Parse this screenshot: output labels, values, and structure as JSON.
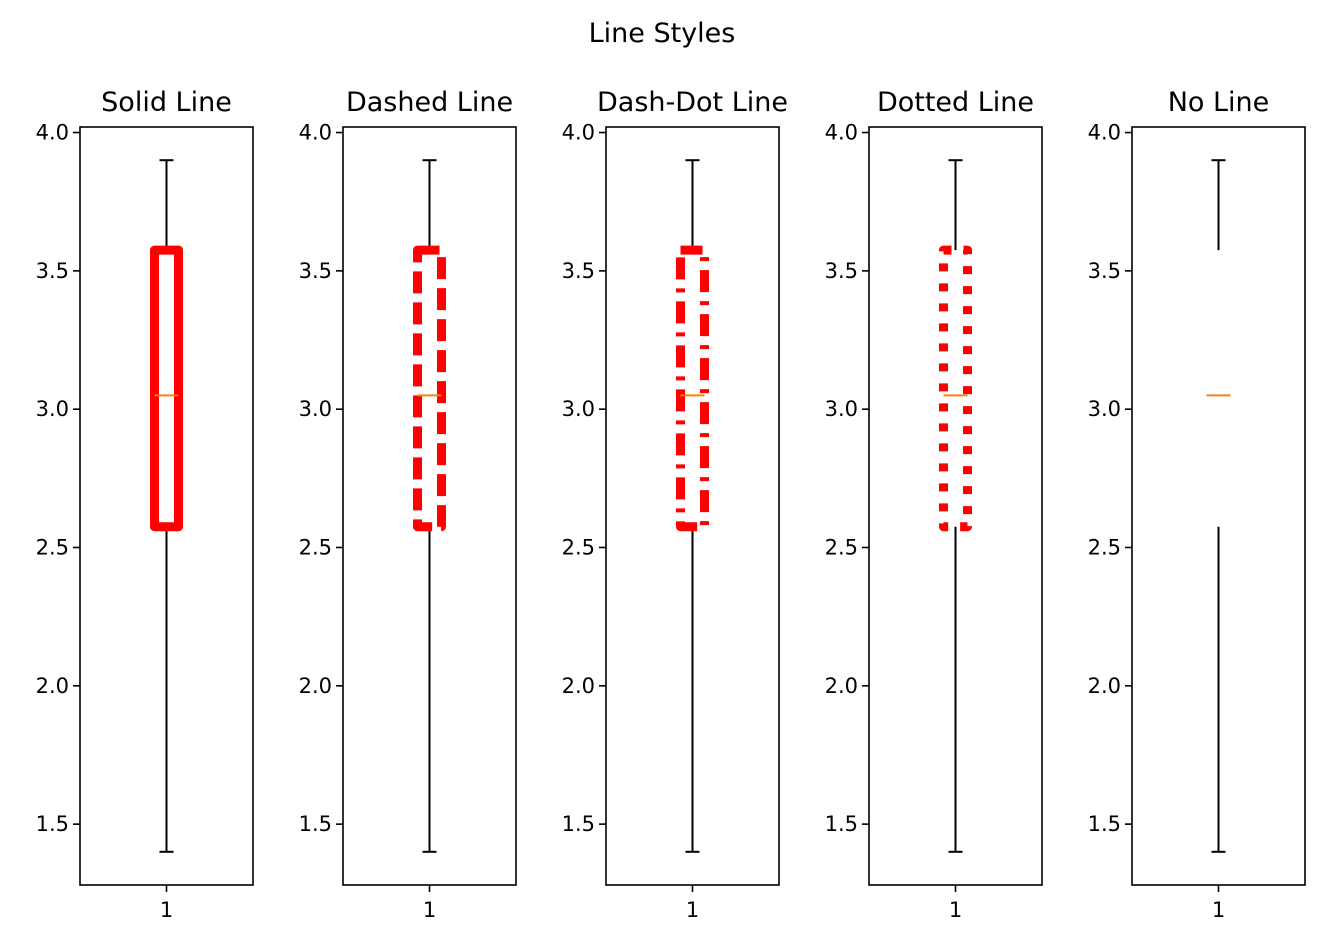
{
  "chart_data": {
    "type": "box",
    "title": "Line Styles",
    "box_color": "#ff0000",
    "whisker_color": "#000000",
    "median_color": "#ff7f0e",
    "ylim": [
      1.28,
      4.02
    ],
    "yticks": [
      1.5,
      2.0,
      2.5,
      3.0,
      3.5,
      4.0
    ],
    "ytick_labels": [
      "1.5",
      "2.0",
      "2.5",
      "3.0",
      "3.5",
      "4.0"
    ],
    "xtick_labels": [
      "1"
    ],
    "panels": [
      {
        "title": "Solid Line",
        "linestyle": "solid",
        "stats": {
          "whislo": 1.4,
          "q1": 2.575,
          "median": 3.05,
          "q3": 3.575,
          "whishi": 3.9
        }
      },
      {
        "title": "Dashed Line",
        "linestyle": "dashed",
        "stats": {
          "whislo": 1.4,
          "q1": 2.575,
          "median": 3.05,
          "q3": 3.575,
          "whishi": 3.9
        }
      },
      {
        "title": "Dash-Dot Line",
        "linestyle": "dashdot",
        "stats": {
          "whislo": 1.4,
          "q1": 2.575,
          "median": 3.05,
          "q3": 3.575,
          "whishi": 3.9
        }
      },
      {
        "title": "Dotted Line",
        "linestyle": "dotted",
        "stats": {
          "whislo": 1.4,
          "q1": 2.575,
          "median": 3.05,
          "q3": 3.575,
          "whishi": 3.9
        }
      },
      {
        "title": "No Line",
        "linestyle": "none",
        "stats": {
          "whislo": 1.4,
          "q1": 2.575,
          "median": 3.05,
          "q3": 3.575,
          "whishi": 3.9
        }
      }
    ]
  }
}
